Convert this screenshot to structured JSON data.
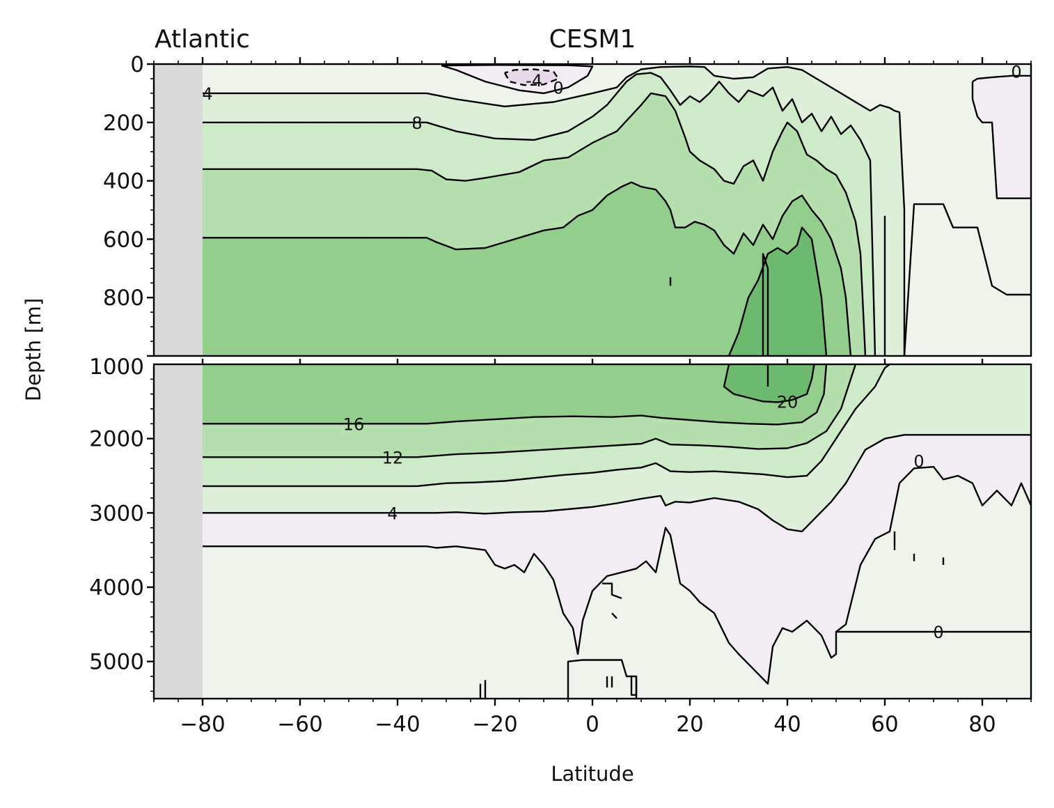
{
  "chart_data": {
    "type": "contour",
    "title_left": "Atlantic",
    "title_center": "CESM1",
    "xlabel": "Latitude",
    "ylabel": "Depth [m]",
    "xlim": [
      -90,
      90
    ],
    "x_ticks": [
      -80,
      -60,
      -40,
      -20,
      0,
      20,
      40,
      60,
      80
    ],
    "x_tick_labels": [
      "−80",
      "−60",
      "−40",
      "−20",
      "0",
      "20",
      "40",
      "60",
      "80"
    ],
    "upper_panel": {
      "ylim": [
        0,
        1000
      ],
      "y_ticks": [
        0,
        200,
        400,
        600,
        800,
        1000
      ],
      "y_tick_labels": [
        "0",
        "200",
        "400",
        "600",
        "800",
        "1000"
      ]
    },
    "lower_panel": {
      "ylim": [
        1000,
        5500
      ],
      "y_ticks": [
        2000,
        3000,
        4000,
        5000
      ],
      "y_tick_labels": [
        "2000",
        "3000",
        "4000",
        "5000"
      ]
    },
    "masked_region": {
      "lat_range": [
        -90,
        -80
      ],
      "color": "#d9d9d9"
    },
    "contour_interval": 4,
    "contour_levels": [
      -4,
      0,
      4,
      8,
      12,
      16,
      20
    ],
    "fill_colors": {
      "lt_-4": "#e7d9ea",
      "-4_0": "#f2edf3",
      "0_4": "#eef4ec",
      "4_8": "#ddefd9",
      "8_12": "#cdebc6",
      "12_16": "#b5e0ae",
      "16_20": "#92cf8d",
      "ge_20": "#6cba6e"
    },
    "contour_labels": [
      {
        "text": "4",
        "lat": -79,
        "depth": 100
      },
      {
        "text": "8",
        "lat": -36,
        "depth": 200
      },
      {
        "text": "-4",
        "lat": -12,
        "depth": 55
      },
      {
        "text": "0",
        "lat": -7,
        "depth": 80
      },
      {
        "text": "0",
        "lat": 87,
        "depth": 25
      },
      {
        "text": "20",
        "lat": 40,
        "depth": 1500
      },
      {
        "text": "16",
        "lat": -49,
        "depth": 1800
      },
      {
        "text": "12",
        "lat": -41,
        "depth": 2250
      },
      {
        "text": "4",
        "lat": -41,
        "depth": 3000
      },
      {
        "text": "0",
        "lat": 67,
        "depth": 2300
      },
      {
        "text": "0",
        "lat": 71,
        "depth": 4600
      }
    ],
    "moc_structure": {
      "southern_flat_isolines_depth_m": {
        "0": 3450,
        "4": 3000,
        "8": 2650,
        "12": 2250,
        "16": 1800,
        "20_top": 600,
        "16_top": 360,
        "12_top": 200,
        "8_top": 100
      },
      "core_max_lat": 40,
      "core_max_depth_m": 1000,
      "core_value_min": 20
    }
  }
}
